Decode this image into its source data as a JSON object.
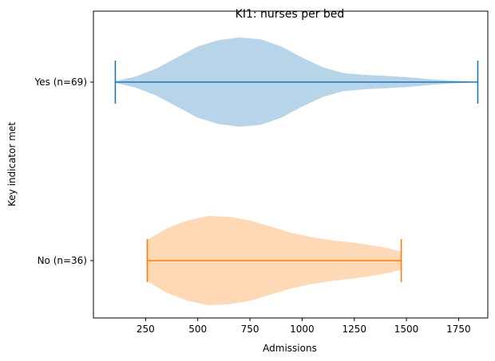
{
  "chart_data": {
    "type": "violin",
    "orientation": "horizontal",
    "title": "KI1: nurses per bed",
    "xlabel": "Admissions",
    "ylabel": "Key indicator met",
    "xlim": [
      0,
      1890
    ],
    "xticks": [
      250,
      500,
      750,
      1000,
      1250,
      1500,
      1750
    ],
    "grid": false,
    "categories": [
      "No (n=36)",
      "Yes (n=69)"
    ],
    "series": [
      {
        "category": "Yes (n=69)",
        "color": "#1f77b4",
        "fill_color": "#b8d4e8",
        "min": 105,
        "max": 1842,
        "density": [
          [
            105,
            0.02
          ],
          [
            200,
            0.12
          ],
          [
            300,
            0.3
          ],
          [
            400,
            0.55
          ],
          [
            500,
            0.8
          ],
          [
            600,
            0.94
          ],
          [
            700,
            1.0
          ],
          [
            800,
            0.96
          ],
          [
            900,
            0.8
          ],
          [
            1000,
            0.55
          ],
          [
            1100,
            0.33
          ],
          [
            1200,
            0.2
          ],
          [
            1300,
            0.16
          ],
          [
            1400,
            0.14
          ],
          [
            1500,
            0.11
          ],
          [
            1600,
            0.07
          ],
          [
            1700,
            0.035
          ],
          [
            1800,
            0.01
          ],
          [
            1842,
            0.0
          ]
        ]
      },
      {
        "category": "No (n=36)",
        "color": "#ff7f0e",
        "fill_color": "#ffd8b5",
        "min": 258,
        "max": 1475,
        "density": [
          [
            258,
            0.46
          ],
          [
            350,
            0.72
          ],
          [
            450,
            0.9
          ],
          [
            550,
            1.0
          ],
          [
            650,
            0.98
          ],
          [
            750,
            0.9
          ],
          [
            850,
            0.76
          ],
          [
            950,
            0.62
          ],
          [
            1050,
            0.52
          ],
          [
            1150,
            0.45
          ],
          [
            1250,
            0.4
          ],
          [
            1350,
            0.33
          ],
          [
            1420,
            0.27
          ],
          [
            1475,
            0.2
          ]
        ]
      }
    ]
  }
}
